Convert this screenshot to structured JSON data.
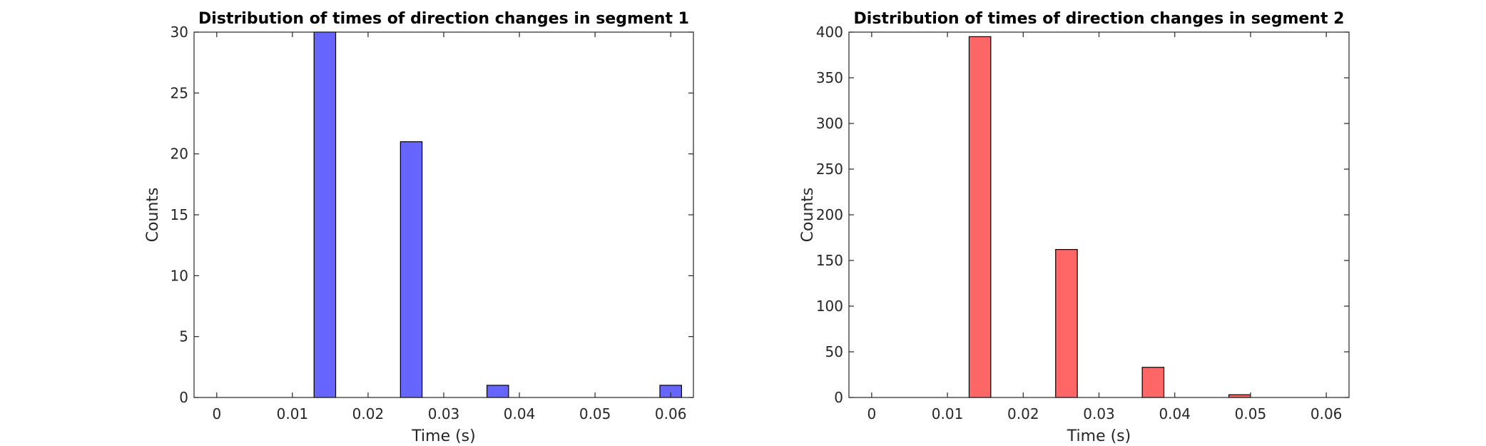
{
  "chart_data": [
    {
      "type": "bar",
      "title": "Distribution of times of direction changes in segment 1",
      "xlabel": "Time (s)",
      "ylabel": "Counts",
      "xlim": [
        -0.003,
        0.063
      ],
      "ylim": [
        0,
        30
      ],
      "xticks": [
        0,
        0.01,
        0.02,
        0.03,
        0.04,
        0.05,
        0.06
      ],
      "xtick_labels": [
        "0",
        "0.01",
        "0.02",
        "0.03",
        "0.04",
        "0.05",
        "0.06"
      ],
      "yticks": [
        0,
        5,
        10,
        15,
        20,
        25,
        30
      ],
      "ytick_labels": [
        "0",
        "5",
        "10",
        "15",
        "20",
        "25",
        "30"
      ],
      "bar_width": 0.00286,
      "color": "#6666ff",
      "bars": [
        {
          "x": 0.01429,
          "value": 30
        },
        {
          "x": 0.02571,
          "value": 21
        },
        {
          "x": 0.03714,
          "value": 1
        },
        {
          "x": 0.06,
          "value": 1
        }
      ]
    },
    {
      "type": "bar",
      "title": "Distribution of times of direction changes in segment 2",
      "xlabel": "Time (s)",
      "ylabel": "Counts",
      "xlim": [
        -0.003,
        0.063
      ],
      "ylim": [
        0,
        400
      ],
      "xticks": [
        0,
        0.01,
        0.02,
        0.03,
        0.04,
        0.05,
        0.06
      ],
      "xtick_labels": [
        "0",
        "0.01",
        "0.02",
        "0.03",
        "0.04",
        "0.05",
        "0.06"
      ],
      "yticks": [
        0,
        50,
        100,
        150,
        200,
        250,
        300,
        350,
        400
      ],
      "ytick_labels": [
        "0",
        "50",
        "100",
        "150",
        "200",
        "250",
        "300",
        "350",
        "400"
      ],
      "bar_width": 0.00286,
      "color": "#ff6666",
      "bars": [
        {
          "x": 0.01429,
          "value": 395
        },
        {
          "x": 0.02571,
          "value": 162
        },
        {
          "x": 0.03714,
          "value": 33
        },
        {
          "x": 0.04857,
          "value": 3
        }
      ]
    }
  ]
}
